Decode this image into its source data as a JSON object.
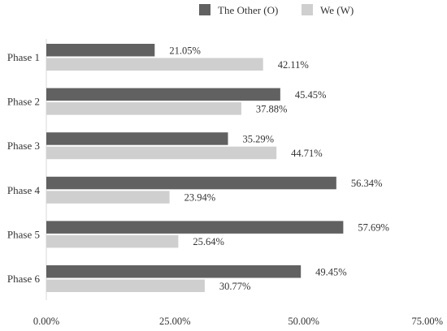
{
  "chart_data": {
    "type": "bar",
    "orientation": "horizontal",
    "categories": [
      "Phase 1",
      "Phase 2",
      "Phase 3",
      "Phase 4",
      "Phase 5",
      "Phase 6"
    ],
    "series": [
      {
        "name": "The Other (O)",
        "color": "#616161",
        "values": [
          21.05,
          45.45,
          35.29,
          56.34,
          57.69,
          49.45
        ],
        "labels": [
          "21.05%",
          "45.45%",
          "35.29%",
          "56.34%",
          "57.69%",
          "49.45%"
        ]
      },
      {
        "name": "We (W)",
        "color": "#cfcfcf",
        "values": [
          42.11,
          37.88,
          44.71,
          23.94,
          25.64,
          30.77
        ],
        "labels": [
          "42.11%",
          "37.88%",
          "44.71%",
          "23.94%",
          "25.64%",
          "30.77%"
        ]
      }
    ],
    "xlim": [
      0,
      75
    ],
    "xticks": [
      0,
      25,
      50,
      75
    ],
    "xtick_labels": [
      "0.00%",
      "25.00%",
      "50.00%",
      "75.00%"
    ],
    "grid": false,
    "legend_position": "top-right"
  }
}
